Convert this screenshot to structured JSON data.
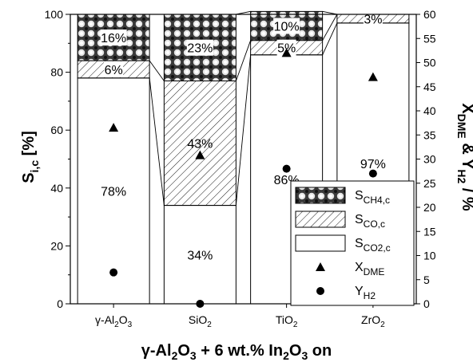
{
  "chart_data": {
    "type": "bar",
    "stacked": true,
    "categories": [
      "γ-Al2O3",
      "SiO2",
      "TiO2",
      "ZrO2"
    ],
    "category_labels": [
      {
        "main": "γ-Al",
        "sub1": "2",
        "mid": "O",
        "sub2": "3"
      },
      {
        "main": "SiO",
        "sub1": "2",
        "mid": "",
        "sub2": ""
      },
      {
        "main": "TiO",
        "sub1": "2",
        "mid": "",
        "sub2": ""
      },
      {
        "main": "ZrO",
        "sub1": "2",
        "mid": "",
        "sub2": ""
      }
    ],
    "series": [
      {
        "key": "co2",
        "values": [
          78,
          34,
          86,
          97
        ],
        "labels": [
          "78%",
          "34%",
          "86%",
          "97%"
        ]
      },
      {
        "key": "co",
        "values": [
          6,
          43,
          5,
          3
        ],
        "labels": [
          "6%",
          "43%",
          "5%",
          "3%"
        ]
      },
      {
        "key": "ch4",
        "values": [
          16,
          23,
          10,
          0
        ],
        "labels": [
          "16%",
          "23%",
          "10%",
          ""
        ]
      }
    ],
    "x_dme": [
      36.5,
      30.8,
      52,
      47
    ],
    "y_h2": [
      6.5,
      0,
      28,
      27
    ],
    "ylim_left": [
      0,
      100
    ],
    "yticks_left": [
      0,
      20,
      40,
      60,
      80,
      100
    ],
    "ylim_right": [
      0,
      60
    ],
    "yticks_right": [
      0,
      5,
      10,
      15,
      20,
      25,
      30,
      35,
      40,
      45,
      50,
      55,
      60
    ],
    "ylabel_left": {
      "main": "S",
      "sub": "i,c",
      "rest": " [%]"
    },
    "ylabel_right": {
      "a": "X",
      "a_sub": "DME",
      "b": " & Y",
      "b_sub": "H2",
      "rest": " / %"
    },
    "xlabel": {
      "p1": "γ-Al",
      "s1": "2",
      "p2": "O",
      "s2": "3",
      "p3": " + 6 wt.% In",
      "s3": "2",
      "p4": "O",
      "s4": "3",
      "p5": " on"
    },
    "legend": [
      {
        "key": "ch4",
        "main": "S",
        "sub": "CH4,c"
      },
      {
        "key": "co",
        "main": "S",
        "sub": "CO,c"
      },
      {
        "key": "co2",
        "main": "S",
        "sub": "CO2,c"
      },
      {
        "key": "xdme",
        "main": "X",
        "sub": "DME"
      },
      {
        "key": "yh2",
        "main": "Y",
        "sub": "H2"
      }
    ],
    "legend_position": "center-right",
    "grid": false
  }
}
